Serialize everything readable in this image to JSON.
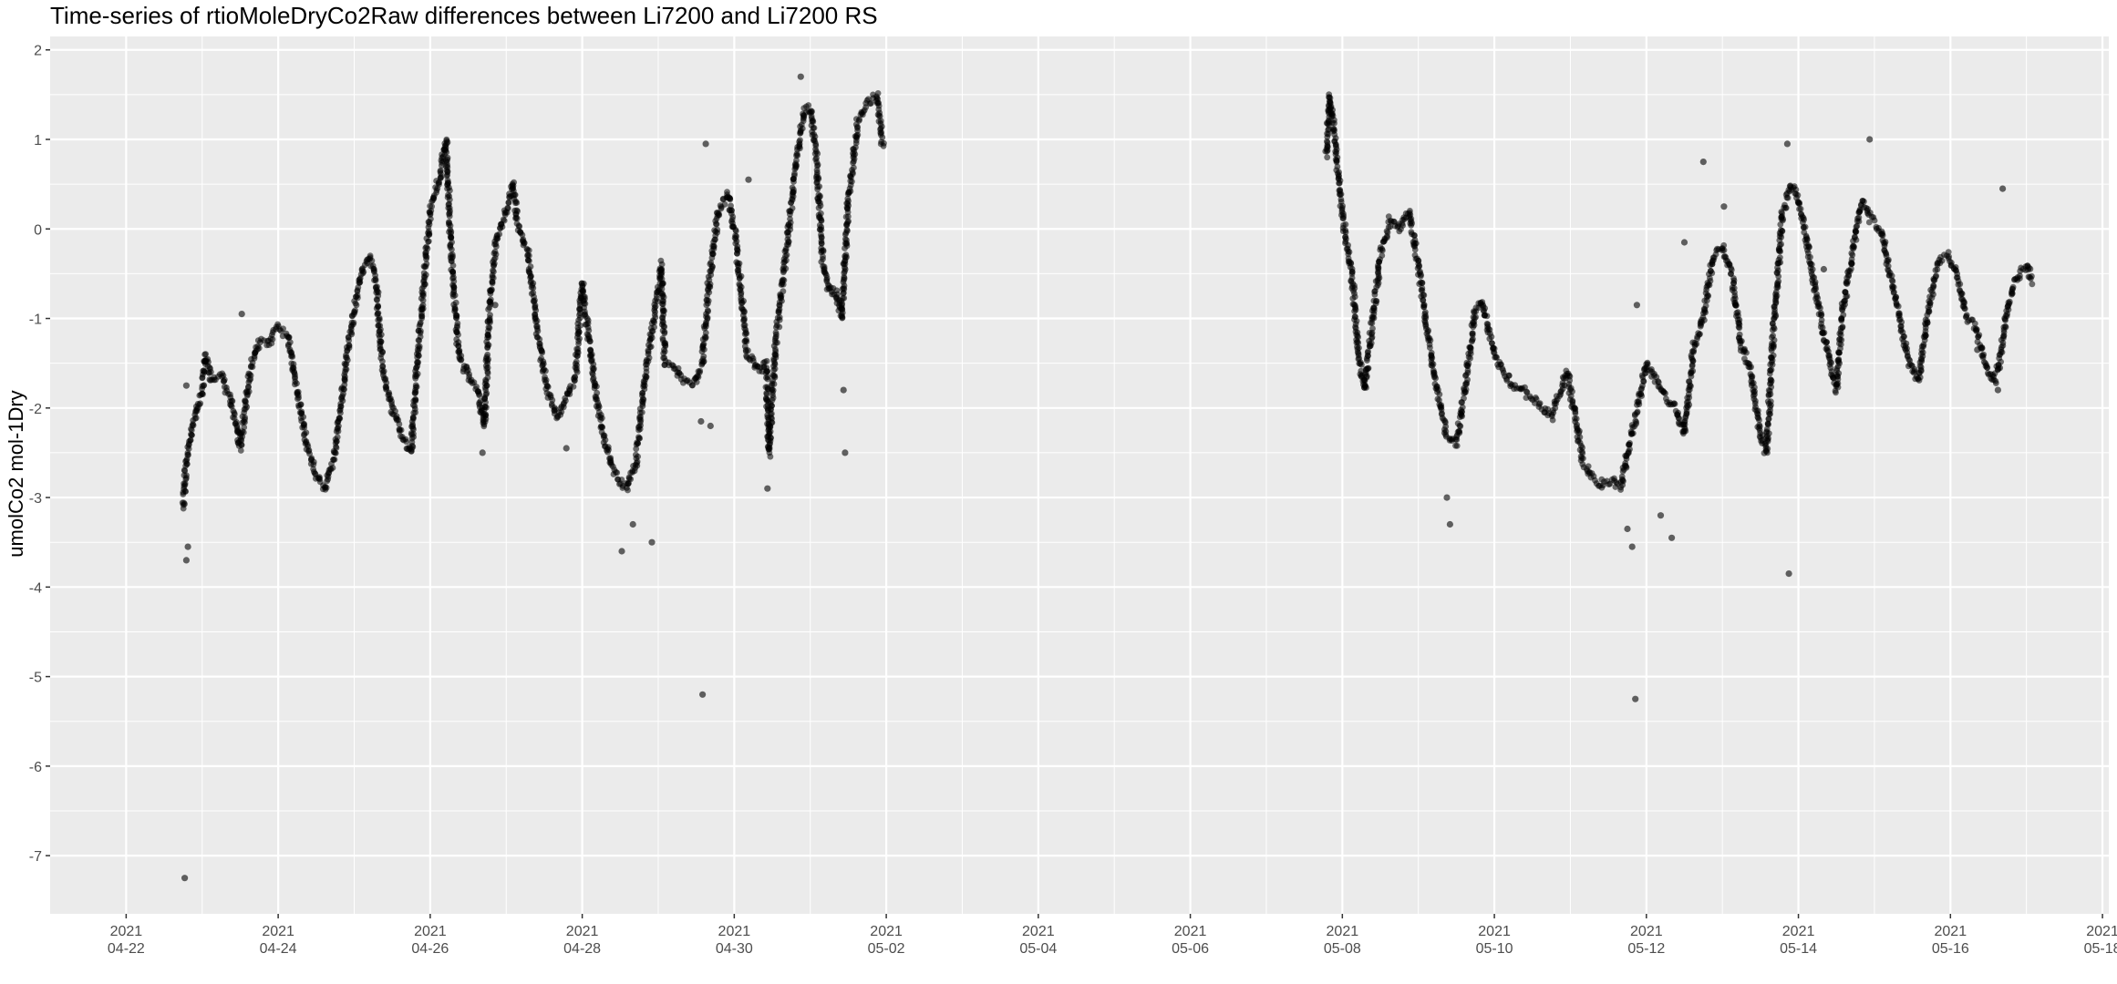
{
  "chart_data": {
    "type": "scatter",
    "title": "Time-series of rtioMoleDryCo2Raw differences between Li7200 and Li7200 RS",
    "xlabel": "",
    "ylabel": "umolCo2 mol-1Dry",
    "xlim": [
      "2021-04-21T00:00",
      "2021-05-18T02:00"
    ],
    "ylim": [
      -7.65,
      2.15
    ],
    "x_ticks": [
      {
        "date": "2021-04-22",
        "label": [
          "2021",
          "04-22"
        ]
      },
      {
        "date": "2021-04-24",
        "label": [
          "2021",
          "04-24"
        ]
      },
      {
        "date": "2021-04-26",
        "label": [
          "2021",
          "04-26"
        ]
      },
      {
        "date": "2021-04-28",
        "label": [
          "2021",
          "04-28"
        ]
      },
      {
        "date": "2021-04-30",
        "label": [
          "2021",
          "04-30"
        ]
      },
      {
        "date": "2021-05-02",
        "label": [
          "2021",
          "05-02"
        ]
      },
      {
        "date": "2021-05-04",
        "label": [
          "2021",
          "05-04"
        ]
      },
      {
        "date": "2021-05-06",
        "label": [
          "2021",
          "05-06"
        ]
      },
      {
        "date": "2021-05-08",
        "label": [
          "2021",
          "05-08"
        ]
      },
      {
        "date": "2021-05-10",
        "label": [
          "2021",
          "05-10"
        ]
      },
      {
        "date": "2021-05-12",
        "label": [
          "2021",
          "05-12"
        ]
      },
      {
        "date": "2021-05-14",
        "label": [
          "2021",
          "05-14"
        ]
      },
      {
        "date": "2021-05-16",
        "label": [
          "2021",
          "05-16"
        ]
      },
      {
        "date": "2021-05-18",
        "label": [
          "2021",
          "05-18"
        ]
      }
    ],
    "y_ticks": [
      2,
      1,
      0,
      -1,
      -2,
      -3,
      -4,
      -5,
      -6,
      -7
    ],
    "grid": true,
    "background": "#ebebeb",
    "point_color": "#000000",
    "series": [
      {
        "points": [
          [
            "2021-04-22T18:00",
            -3.1
          ],
          [
            "2021-04-22T19:00",
            -2.6
          ],
          [
            "2021-04-22T21:00",
            -2.2
          ],
          [
            "2021-04-23T00:00",
            -1.8
          ],
          [
            "2021-04-23T01:00",
            -1.4
          ],
          [
            "2021-04-23T03:00",
            -1.7
          ],
          [
            "2021-04-23T06:00",
            -1.65
          ],
          [
            "2021-04-23T09:00",
            -1.9
          ],
          [
            "2021-04-23T12:00",
            -2.45
          ],
          [
            "2021-04-23T15:00",
            -1.6
          ],
          [
            "2021-04-23T18:00",
            -1.25
          ],
          [
            "2021-04-23T21:00",
            -1.3
          ],
          [
            "2021-04-24T00:00",
            -1.1
          ],
          [
            "2021-04-24T03:00",
            -1.2
          ],
          [
            "2021-04-24T06:00",
            -1.8
          ],
          [
            "2021-04-24T09:00",
            -2.4
          ],
          [
            "2021-04-24T12:00",
            -2.75
          ],
          [
            "2021-04-24T15:00",
            -2.9
          ],
          [
            "2021-04-24T18:00",
            -2.5
          ],
          [
            "2021-04-24T21:00",
            -1.6
          ],
          [
            "2021-04-25T00:00",
            -0.9
          ],
          [
            "2021-04-25T03:00",
            -0.4
          ],
          [
            "2021-04-25T05:00",
            -0.3
          ],
          [
            "2021-04-25T07:00",
            -0.6
          ],
          [
            "2021-04-25T09:00",
            -1.6
          ],
          [
            "2021-04-25T12:00",
            -2.0
          ],
          [
            "2021-04-25T15:00",
            -2.3
          ],
          [
            "2021-04-25T18:00",
            -2.5
          ],
          [
            "2021-04-25T21:00",
            -1.0
          ],
          [
            "2021-04-26T00:00",
            0.2
          ],
          [
            "2021-04-26T03:00",
            0.6
          ],
          [
            "2021-04-26T05:00",
            1.0
          ],
          [
            "2021-04-26T07:00",
            -0.5
          ],
          [
            "2021-04-26T09:00",
            -1.4
          ],
          [
            "2021-04-26T12:00",
            -1.65
          ],
          [
            "2021-04-26T15:00",
            -1.8
          ],
          [
            "2021-04-26T17:00",
            -2.2
          ],
          [
            "2021-04-26T19:00",
            -0.7
          ],
          [
            "2021-04-26T21:00",
            -0.1
          ],
          [
            "2021-04-27T00:00",
            0.2
          ],
          [
            "2021-04-27T02:00",
            0.5
          ],
          [
            "2021-04-27T04:00",
            0.0
          ],
          [
            "2021-04-27T07:00",
            -0.3
          ],
          [
            "2021-04-27T10:00",
            -1.2
          ],
          [
            "2021-04-27T13:00",
            -1.8
          ],
          [
            "2021-04-27T16:00",
            -2.1
          ],
          [
            "2021-04-27T19:00",
            -1.9
          ],
          [
            "2021-04-27T22:00",
            -1.6
          ],
          [
            "2021-04-28T00:00",
            -0.6
          ],
          [
            "2021-04-28T02:00",
            -1.2
          ],
          [
            "2021-04-28T05:00",
            -2.0
          ],
          [
            "2021-04-28T08:00",
            -2.5
          ],
          [
            "2021-04-28T11:00",
            -2.8
          ],
          [
            "2021-04-28T14:00",
            -2.9
          ],
          [
            "2021-04-28T17:00",
            -2.6
          ],
          [
            "2021-04-28T20:00",
            -1.6
          ],
          [
            "2021-04-28T23:00",
            -0.9
          ],
          [
            "2021-04-29T01:00",
            -0.4
          ],
          [
            "2021-04-29T02:00",
            -1.5
          ],
          [
            "2021-04-29T05:00",
            -1.55
          ],
          [
            "2021-04-29T08:00",
            -1.7
          ],
          [
            "2021-04-29T11:00",
            -1.75
          ],
          [
            "2021-04-29T14:00",
            -1.5
          ],
          [
            "2021-04-29T16:00",
            -0.6
          ],
          [
            "2021-04-29T19:00",
            0.2
          ],
          [
            "2021-04-29T22:00",
            0.4
          ],
          [
            "2021-04-30T00:00",
            0.0
          ],
          [
            "2021-04-30T02:00",
            -0.6
          ],
          [
            "2021-04-30T04:00",
            -1.4
          ],
          [
            "2021-04-30T06:00",
            -1.5
          ],
          [
            "2021-04-30T08:00",
            -1.6
          ],
          [
            "2021-04-30T10:00",
            -1.5
          ],
          [
            "2021-04-30T11:00",
            -2.5
          ],
          [
            "2021-04-30T13:00",
            -1.3
          ],
          [
            "2021-04-30T16:00",
            -0.4
          ],
          [
            "2021-04-30T19:00",
            0.6
          ],
          [
            "2021-04-30T22:00",
            1.3
          ],
          [
            "2021-05-01T00:00",
            1.35
          ],
          [
            "2021-05-01T02:00",
            0.8
          ],
          [
            "2021-05-01T04:00",
            -0.4
          ],
          [
            "2021-05-01T06:00",
            -0.7
          ],
          [
            "2021-05-01T08:00",
            -0.7
          ],
          [
            "2021-05-01T10:00",
            -1.0
          ],
          [
            "2021-05-01T12:00",
            0.3
          ],
          [
            "2021-05-01T15:00",
            1.2
          ],
          [
            "2021-05-01T18:00",
            1.4
          ],
          [
            "2021-05-01T21:00",
            1.5
          ],
          [
            "2021-05-01T23:00",
            0.9
          ],
          [
            "2021-05-07T19:00",
            0.8
          ],
          [
            "2021-05-07T20:00",
            1.5
          ],
          [
            "2021-05-07T21:00",
            1.2
          ],
          [
            "2021-05-07T23:00",
            0.5
          ],
          [
            "2021-05-08T01:00",
            -0.1
          ],
          [
            "2021-05-08T03:00",
            -0.5
          ],
          [
            "2021-05-08T05:00",
            -1.4
          ],
          [
            "2021-05-08T07:00",
            -1.8
          ],
          [
            "2021-05-08T09:00",
            -1.2
          ],
          [
            "2021-05-08T12:00",
            -0.3
          ],
          [
            "2021-05-08T15:00",
            0.1
          ],
          [
            "2021-05-08T18:00",
            0.0
          ],
          [
            "2021-05-08T21:00",
            0.2
          ],
          [
            "2021-05-09T00:00",
            -0.4
          ],
          [
            "2021-05-09T03:00",
            -1.2
          ],
          [
            "2021-05-09T06:00",
            -1.8
          ],
          [
            "2021-05-09T09:00",
            -2.3
          ],
          [
            "2021-05-09T12:00",
            -2.4
          ],
          [
            "2021-05-09T15:00",
            -1.7
          ],
          [
            "2021-05-09T18:00",
            -0.9
          ],
          [
            "2021-05-09T20:00",
            -0.8
          ],
          [
            "2021-05-09T22:00",
            -1.1
          ],
          [
            "2021-05-10T00:00",
            -1.4
          ],
          [
            "2021-05-10T03:00",
            -1.6
          ],
          [
            "2021-05-10T06:00",
            -1.75
          ],
          [
            "2021-05-10T09:00",
            -1.8
          ],
          [
            "2021-05-10T12:00",
            -1.9
          ],
          [
            "2021-05-10T15:00",
            -2.0
          ],
          [
            "2021-05-10T18:00",
            -2.1
          ],
          [
            "2021-05-10T21:00",
            -1.8
          ],
          [
            "2021-05-10T23:00",
            -1.6
          ],
          [
            "2021-05-11T01:00",
            -2.0
          ],
          [
            "2021-05-11T04:00",
            -2.6
          ],
          [
            "2021-05-11T07:00",
            -2.8
          ],
          [
            "2021-05-11T10:00",
            -2.85
          ],
          [
            "2021-05-11T13:00",
            -2.8
          ],
          [
            "2021-05-11T16:00",
            -2.9
          ],
          [
            "2021-05-11T18:00",
            -2.5
          ],
          [
            "2021-05-11T20:00",
            -2.2
          ],
          [
            "2021-05-12T00:00",
            -1.5
          ],
          [
            "2021-05-12T03:00",
            -1.7
          ],
          [
            "2021-05-12T06:00",
            -1.9
          ],
          [
            "2021-05-12T09:00",
            -2.0
          ],
          [
            "2021-05-12T12:00",
            -2.3
          ],
          [
            "2021-05-12T15:00",
            -1.3
          ],
          [
            "2021-05-12T18:00",
            -1.0
          ],
          [
            "2021-05-12T21:00",
            -0.3
          ],
          [
            "2021-05-13T00:00",
            -0.2
          ],
          [
            "2021-05-13T03:00",
            -0.5
          ],
          [
            "2021-05-13T06:00",
            -1.3
          ],
          [
            "2021-05-13T09:00",
            -1.6
          ],
          [
            "2021-05-13T12:00",
            -2.3
          ],
          [
            "2021-05-13T14:00",
            -2.5
          ],
          [
            "2021-05-13T16:00",
            -1.2
          ],
          [
            "2021-05-13T19:00",
            0.2
          ],
          [
            "2021-05-13T22:00",
            0.5
          ],
          [
            "2021-05-14T01:00",
            0.2
          ],
          [
            "2021-05-14T04:00",
            -0.4
          ],
          [
            "2021-05-14T07:00",
            -1.0
          ],
          [
            "2021-05-14T10:00",
            -1.5
          ],
          [
            "2021-05-14T12:00",
            -1.8
          ],
          [
            "2021-05-14T14:00",
            -0.9
          ],
          [
            "2021-05-14T17:00",
            -0.3
          ],
          [
            "2021-05-14T20:00",
            0.3
          ],
          [
            "2021-05-14T23:00",
            0.1
          ],
          [
            "2021-05-15T02:00",
            0.0
          ],
          [
            "2021-05-15T05:00",
            -0.5
          ],
          [
            "2021-05-15T08:00",
            -1.0
          ],
          [
            "2021-05-15T11:00",
            -1.5
          ],
          [
            "2021-05-15T14:00",
            -1.7
          ],
          [
            "2021-05-15T17:00",
            -0.9
          ],
          [
            "2021-05-15T20:00",
            -0.4
          ],
          [
            "2021-05-15T23:00",
            -0.3
          ],
          [
            "2021-05-16T02:00",
            -0.5
          ],
          [
            "2021-05-16T05:00",
            -1.0
          ],
          [
            "2021-05-16T08:00",
            -1.1
          ],
          [
            "2021-05-16T11:00",
            -1.5
          ],
          [
            "2021-05-16T14:00",
            -1.7
          ],
          [
            "2021-05-16T16:00",
            -1.4
          ],
          [
            "2021-05-16T18:00",
            -0.9
          ],
          [
            "2021-05-16T20:00",
            -0.6
          ],
          [
            "2021-05-16T22:00",
            -0.5
          ],
          [
            "2021-05-17T00:00",
            -0.4
          ],
          [
            "2021-05-17T02:00",
            -0.6
          ]
        ]
      }
    ],
    "outliers": [
      [
        "2021-04-22T18:30",
        -7.25
      ],
      [
        "2021-04-22T19:00",
        -3.7
      ],
      [
        "2021-04-22T19:30",
        -3.55
      ],
      [
        "2021-04-22T19:00",
        -1.75
      ],
      [
        "2021-04-23T12:30",
        -0.95
      ],
      [
        "2021-04-26T16:30",
        -2.5
      ],
      [
        "2021-04-26T20:30",
        -0.85
      ],
      [
        "2021-04-27T19:00",
        -2.45
      ],
      [
        "2021-04-28T16:00",
        -3.3
      ],
      [
        "2021-04-28T12:30",
        -3.6
      ],
      [
        "2021-04-28T22:00",
        -3.5
      ],
      [
        "2021-04-29T14:00",
        -5.2
      ],
      [
        "2021-04-29T15:00",
        0.95
      ],
      [
        "2021-04-29T16:30",
        -2.2
      ],
      [
        "2021-04-29T13:30",
        -2.15
      ],
      [
        "2021-04-30T04:30",
        0.55
      ],
      [
        "2021-04-30T10:30",
        -2.9
      ],
      [
        "2021-04-30T21:00",
        1.7
      ],
      [
        "2021-05-01T11:00",
        -2.5
      ],
      [
        "2021-05-01T10:30",
        -1.8
      ],
      [
        "2021-05-09T10:00",
        -3.3
      ],
      [
        "2021-05-09T09:00",
        -3.0
      ],
      [
        "2021-05-11T18:00",
        -3.35
      ],
      [
        "2021-05-11T19:30",
        -3.55
      ],
      [
        "2021-05-11T20:30",
        -5.25
      ],
      [
        "2021-05-11T21:00",
        -0.85
      ],
      [
        "2021-05-12T04:30",
        -3.2
      ],
      [
        "2021-05-12T08:00",
        -3.45
      ],
      [
        "2021-05-12T12:00",
        -0.15
      ],
      [
        "2021-05-12T18:00",
        0.75
      ],
      [
        "2021-05-13T00:30",
        0.25
      ],
      [
        "2021-05-13T21:00",
        -3.85
      ],
      [
        "2021-05-13T20:30",
        0.95
      ],
      [
        "2021-05-14T08:00",
        -0.45
      ],
      [
        "2021-05-14T22:30",
        1.0
      ],
      [
        "2021-05-16T08:30",
        -1.35
      ],
      [
        "2021-05-16T15:00",
        -1.8
      ],
      [
        "2021-05-16T16:30",
        0.45
      ]
    ]
  }
}
